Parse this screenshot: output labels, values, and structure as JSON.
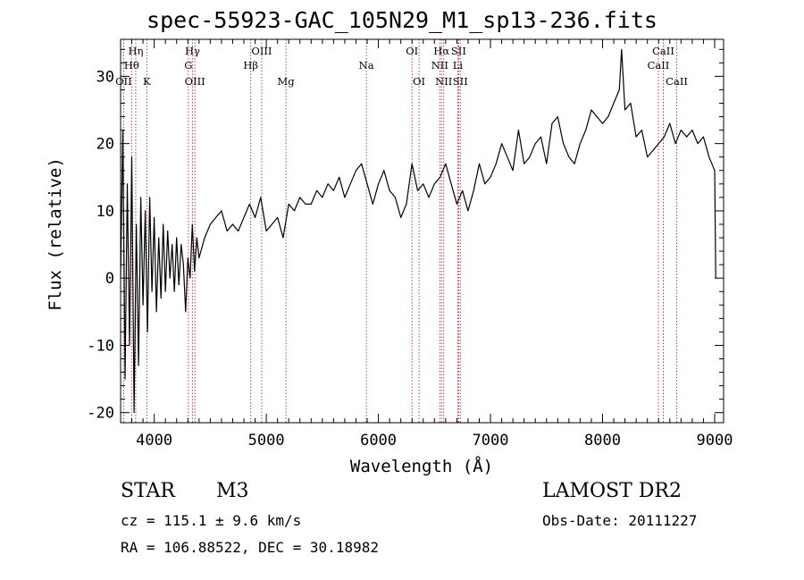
{
  "header": {
    "title": "spec-55923-GAC_105N29_M1_sp13-236.fits"
  },
  "info": {
    "class": "STAR",
    "subclass": "M3",
    "survey": "LAMOST DR2",
    "cz": "cz = 115.1 ± 9.6 km/s",
    "obs_date": "Obs-Date: 20111227",
    "radec": "RA = 106.88522, DEC =  30.18982"
  },
  "colors": {
    "spectrum": "#000000",
    "line_markers": "#b03030",
    "axes": "#000000"
  },
  "chart_data": {
    "type": "line",
    "title": "spec-55923-GAC_105N29_M1_sp13-236.fits",
    "xlabel": "Wavelength (Å)",
    "ylabel": "Flux (relative)",
    "xlim": [
      3700,
      9080
    ],
    "ylim": [
      -21.5,
      35.5
    ],
    "xticks": [
      4000,
      5000,
      6000,
      7000,
      8000,
      9000
    ],
    "yticks": [
      -20,
      -10,
      0,
      10,
      20,
      30
    ],
    "grid": false,
    "series": [
      {
        "x": [
          3700,
          3720,
          3740,
          3760,
          3780,
          3800,
          3820,
          3840,
          3860,
          3880,
          3900,
          3920,
          3940,
          3960,
          3980,
          4000,
          4020,
          4040,
          4060,
          4080,
          4100,
          4120,
          4140,
          4160,
          4180,
          4200,
          4220,
          4240,
          4260,
          4280,
          4300,
          4320,
          4340,
          4360,
          4380,
          4400,
          4450,
          4500,
          4550,
          4600,
          4650,
          4700,
          4750,
          4800,
          4850,
          4900,
          4950,
          5000,
          5050,
          5100,
          5150,
          5200,
          5250,
          5300,
          5350,
          5400,
          5450,
          5500,
          5550,
          5600,
          5650,
          5700,
          5750,
          5800,
          5850,
          5900,
          5950,
          6000,
          6050,
          6100,
          6150,
          6200,
          6250,
          6300,
          6350,
          6400,
          6450,
          6500,
          6550,
          6600,
          6650,
          6700,
          6750,
          6800,
          6850,
          6900,
          6950,
          7000,
          7050,
          7100,
          7150,
          7200,
          7250,
          7300,
          7350,
          7400,
          7450,
          7500,
          7550,
          7600,
          7650,
          7700,
          7750,
          7800,
          7850,
          7900,
          7950,
          8000,
          8050,
          8100,
          8150,
          8170,
          8200,
          8250,
          8300,
          8350,
          8400,
          8450,
          8500,
          8550,
          8600,
          8650,
          8700,
          8750,
          8800,
          8850,
          8900,
          8950,
          9000,
          9010
        ],
        "y": [
          0,
          22,
          -15,
          14,
          -10,
          18,
          -20,
          8,
          -13,
          12,
          -4,
          10,
          -8,
          12,
          -2,
          9,
          -5,
          6,
          -3,
          8,
          -2,
          7,
          0,
          5,
          -2,
          6,
          -1,
          5,
          2,
          -5,
          3,
          0,
          8,
          1,
          6,
          3,
          6,
          8,
          9,
          10,
          7,
          8,
          7,
          9,
          11,
          9,
          12,
          7,
          8,
          9,
          6,
          11,
          10,
          12,
          11,
          11,
          13,
          12,
          14,
          13,
          15,
          12,
          14,
          16,
          17,
          14,
          11,
          14,
          16,
          13,
          12,
          9,
          11,
          17,
          13,
          14,
          12,
          14,
          15,
          17,
          14,
          11,
          13,
          10,
          13,
          17,
          14,
          15,
          17,
          20,
          18,
          16,
          22,
          17,
          18,
          20,
          21,
          17,
          23,
          24,
          20,
          18,
          17,
          20,
          22,
          25,
          24,
          23,
          24,
          26,
          28,
          34,
          25,
          26,
          21,
          22,
          18,
          19,
          20,
          21,
          23,
          20,
          22,
          21,
          22,
          20,
          21,
          18,
          16,
          0
        ]
      }
    ],
    "line_ids": [
      {
        "label": "Hη",
        "wavelength": 3835,
        "row": 1
      },
      {
        "label": "Hθ",
        "wavelength": 3798,
        "row": 2
      },
      {
        "label": "OII",
        "wavelength": 3727,
        "row": 3
      },
      {
        "label": "K",
        "wavelength": 3934,
        "row": 3
      },
      {
        "label": "Hγ",
        "wavelength": 4341,
        "row": 1
      },
      {
        "label": "G",
        "wavelength": 4305,
        "row": 2
      },
      {
        "label": "OIII",
        "wavelength": 4363,
        "row": 3
      },
      {
        "label": "OIII",
        "wavelength": 4959,
        "row": 1
      },
      {
        "label": "Hβ",
        "wavelength": 4861,
        "row": 2
      },
      {
        "label": "Mg",
        "wavelength": 5175,
        "row": 3
      },
      {
        "label": "Na",
        "wavelength": 5893,
        "row": 2
      },
      {
        "label": "OI",
        "wavelength": 6300,
        "row": 1
      },
      {
        "label": "OI",
        "wavelength": 6363,
        "row": 3
      },
      {
        "label": "Hα",
        "wavelength": 6563,
        "row": 1
      },
      {
        "label": "SII",
        "wavelength": 6716,
        "row": 1
      },
      {
        "label": "NII",
        "wavelength": 6548,
        "row": 2
      },
      {
        "label": "Li",
        "wavelength": 6708,
        "row": 2
      },
      {
        "label": "NII",
        "wavelength": 6583,
        "row": 3
      },
      {
        "label": "SII",
        "wavelength": 6731,
        "row": 3
      },
      {
        "label": "CaII",
        "wavelength": 8542,
        "row": 1
      },
      {
        "label": "CaII",
        "wavelength": 8498,
        "row": 2
      },
      {
        "label": "CaII",
        "wavelength": 8662,
        "row": 3
      }
    ]
  }
}
